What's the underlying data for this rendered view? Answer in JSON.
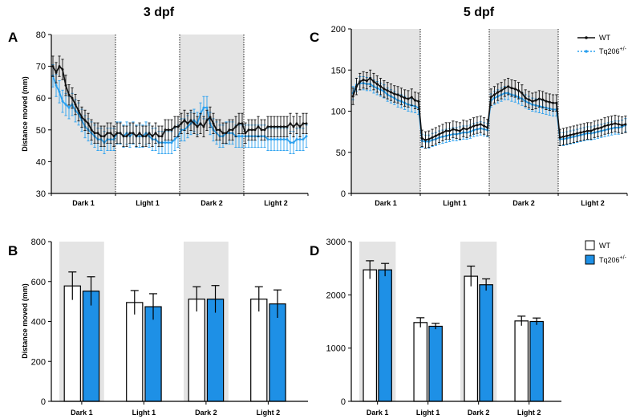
{
  "figure": {
    "headings": {
      "left": "3 dpf",
      "right": "5 dpf"
    },
    "panel_letters": {
      "A": "A",
      "B": "B",
      "C": "C",
      "D": "D"
    }
  },
  "colors": {
    "wt": "#111111",
    "mutant": "#2aa0ef",
    "mutant_bar": "#1e90e6",
    "dark_shade": "#e4e4e4"
  },
  "legend": {
    "line": [
      {
        "label": "WT",
        "base": "WT",
        "sup": ""
      },
      {
        "label": "Tq206+/-",
        "base": "Tq206",
        "sup": "+/-"
      }
    ],
    "bar": [
      {
        "label": "WT",
        "base": "WT",
        "sup": ""
      },
      {
        "label": "Tq206+/-",
        "base": "Tq206",
        "sup": "+/-"
      }
    ]
  },
  "chart_data": [
    {
      "id": "A",
      "type": "line",
      "title": "3 dpf",
      "ylabel": "Distance moved (mm)",
      "xlabel": "",
      "ylim": [
        30,
        80
      ],
      "yticks": [
        30,
        40,
        50,
        60,
        70,
        80
      ],
      "phases": [
        "Dark 1",
        "Light 1",
        "Dark 2",
        "Light 2"
      ],
      "shaded_phases": [
        "Dark 1",
        "Dark 2"
      ],
      "points_per_phase": 20,
      "series": [
        {
          "name": "WT",
          "values": [
            70,
            68,
            70,
            69,
            64,
            61,
            60,
            58,
            56,
            54,
            53,
            52,
            50,
            49,
            49,
            48,
            48,
            49,
            49,
            48,
            49,
            49,
            48,
            48,
            49,
            49,
            48,
            49,
            48,
            48,
            49,
            48,
            49,
            48,
            48,
            50,
            50,
            50,
            51,
            51,
            52,
            53,
            52,
            53,
            52,
            51,
            52,
            51,
            53,
            54,
            52,
            50,
            50,
            49,
            49,
            50,
            50,
            51,
            52,
            52,
            49,
            50,
            50,
            50,
            51,
            50,
            50,
            51,
            51,
            51,
            51,
            51,
            51,
            51,
            52,
            51,
            52,
            51,
            52,
            52
          ],
          "error": 3.2
        },
        {
          "name": "Tq206+/-",
          "values": [
            67,
            64,
            62,
            59,
            58,
            57,
            58,
            56,
            55,
            53,
            51,
            50,
            49,
            48,
            47,
            47,
            46,
            47,
            47,
            47,
            49,
            49,
            48,
            49,
            48,
            49,
            48,
            48,
            48,
            49,
            48,
            47,
            47,
            46,
            46,
            46,
            46,
            46,
            47,
            48,
            50,
            50,
            51,
            52,
            53,
            52,
            55,
            57,
            57,
            52,
            50,
            49,
            48,
            48,
            49,
            49,
            49,
            48,
            48,
            48,
            48,
            48,
            48,
            48,
            48,
            48,
            48,
            47,
            47,
            47,
            47,
            47,
            47,
            47,
            46,
            46,
            47,
            47,
            47,
            48
          ],
          "error": 3.5
        }
      ]
    },
    {
      "id": "B",
      "type": "bar",
      "title": "3 dpf",
      "ylabel": "Distance moved (mm)",
      "ylim": [
        0,
        800
      ],
      "yticks": [
        0,
        200,
        400,
        600,
        800
      ],
      "categories": [
        "Dark 1",
        "Light 1",
        "Dark 2",
        "Light 2"
      ],
      "shaded_categories": [
        "Dark 1",
        "Dark 2"
      ],
      "series": [
        {
          "name": "WT",
          "values": [
            578,
            495,
            512,
            512
          ],
          "errors": [
            70,
            60,
            62,
            62
          ]
        },
        {
          "name": "Tq206+/-",
          "values": [
            552,
            474,
            512,
            488
          ],
          "errors": [
            72,
            65,
            68,
            70
          ]
        }
      ]
    },
    {
      "id": "C",
      "type": "line",
      "title": "5 dpf",
      "ylabel": "",
      "xlabel": "",
      "ylim": [
        0,
        200
      ],
      "yticks": [
        0,
        50,
        100,
        150,
        200
      ],
      "phases": [
        "Dark 1",
        "Light 1",
        "Dark 2",
        "Light 2"
      ],
      "shaded_phases": [
        "Dark 1",
        "Dark 2"
      ],
      "points_per_phase": 20,
      "series": [
        {
          "name": "WT",
          "values": [
            118,
            130,
            136,
            138,
            137,
            140,
            136,
            133,
            130,
            127,
            125,
            123,
            121,
            120,
            118,
            116,
            115,
            117,
            113,
            112,
            67,
            65,
            66,
            68,
            70,
            72,
            74,
            76,
            76,
            78,
            77,
            76,
            79,
            78,
            80,
            82,
            83,
            84,
            82,
            80,
            117,
            120,
            123,
            125,
            128,
            130,
            128,
            127,
            125,
            122,
            116,
            114,
            112,
            113,
            115,
            114,
            112,
            111,
            110,
            110,
            68,
            69,
            70,
            71,
            72,
            73,
            74,
            75,
            76,
            76,
            78,
            79,
            80,
            82,
            83,
            84,
            85,
            84,
            83,
            84
          ],
          "error": 10
        },
        {
          "name": "Tq206+/-",
          "values": [
            122,
            132,
            134,
            134,
            133,
            133,
            130,
            128,
            126,
            124,
            120,
            118,
            116,
            113,
            112,
            110,
            108,
            107,
            106,
            104,
            64,
            63,
            63,
            65,
            66,
            68,
            69,
            70,
            71,
            72,
            72,
            73,
            74,
            74,
            75,
            77,
            78,
            79,
            78,
            77,
            113,
            116,
            118,
            120,
            122,
            122,
            120,
            119,
            117,
            115,
            112,
            110,
            108,
            107,
            106,
            105,
            104,
            103,
            102,
            102,
            66,
            66,
            67,
            68,
            69,
            70,
            71,
            72,
            73,
            73,
            74,
            75,
            76,
            77,
            78,
            79,
            80,
            80,
            81,
            83
          ],
          "error": 8
        }
      ]
    },
    {
      "id": "D",
      "type": "bar",
      "title": "5 dpf",
      "ylabel": "",
      "ylim": [
        0,
        3000
      ],
      "yticks": [
        0,
        1000,
        2000,
        3000
      ],
      "categories": [
        "Dark 1",
        "Light 1",
        "Dark 2",
        "Light 2"
      ],
      "shaded_categories": [
        "Dark 1",
        "Dark 2"
      ],
      "series": [
        {
          "name": "WT",
          "values": [
            2470,
            1480,
            2350,
            1510
          ],
          "errors": [
            170,
            90,
            190,
            90
          ]
        },
        {
          "name": "Tq206+/-",
          "values": [
            2470,
            1410,
            2190,
            1500
          ],
          "errors": [
            120,
            55,
            110,
            65
          ]
        }
      ]
    }
  ]
}
